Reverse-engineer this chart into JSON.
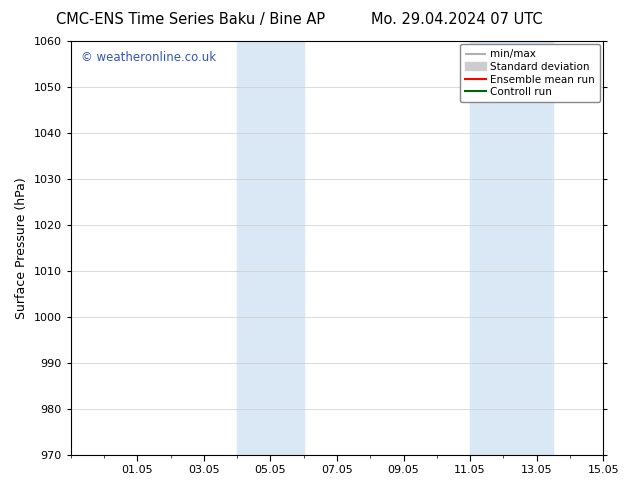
{
  "title_left": "CMC-ENS Time Series Baku / Bine AP",
  "title_right": "Mo. 29.04.2024 07 UTC",
  "ylabel": "Surface Pressure (hPa)",
  "ylim": [
    970,
    1060
  ],
  "yticks": [
    970,
    980,
    990,
    1000,
    1010,
    1020,
    1030,
    1040,
    1050,
    1060
  ],
  "xlim": [
    0,
    16
  ],
  "x_tick_labels": [
    "01.05",
    "03.05",
    "05.05",
    "07.05",
    "09.05",
    "11.05",
    "13.05",
    "15.05"
  ],
  "x_tick_positions": [
    2,
    4,
    6,
    8,
    10,
    12,
    14,
    16
  ],
  "shaded_bands": [
    {
      "x_start": 5.0,
      "x_end": 7.0
    },
    {
      "x_start": 12.0,
      "x_end": 14.5
    }
  ],
  "shade_color": "#dae8f5",
  "background_color": "#ffffff",
  "plot_bg_color": "#ffffff",
  "watermark_text": "© weatheronline.co.uk",
  "watermark_color": "#3355bb",
  "legend_items": [
    {
      "label": "min/max",
      "color": "#b0b0b0",
      "lw": 1.5
    },
    {
      "label": "Standard deviation",
      "color": "#cccccc",
      "lw": 8
    },
    {
      "label": "Ensemble mean run",
      "color": "#ff0000",
      "lw": 1.5
    },
    {
      "label": "Controll run",
      "color": "#006600",
      "lw": 1.5
    }
  ],
  "title_fontsize": 10.5,
  "label_fontsize": 9,
  "tick_fontsize": 8,
  "watermark_fontsize": 8.5,
  "legend_fontsize": 7.5
}
